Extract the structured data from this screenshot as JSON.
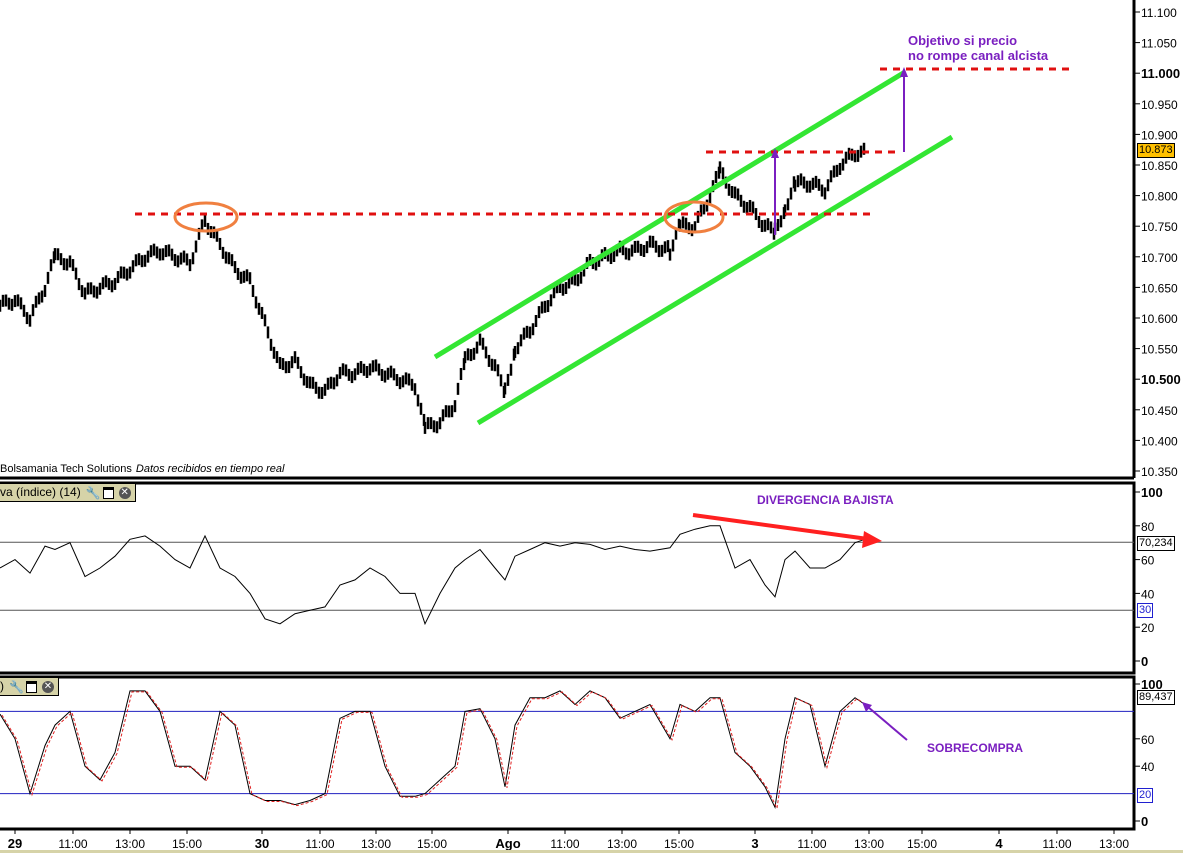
{
  "chart_data": [
    {
      "type": "line",
      "name": "price",
      "title": "Price",
      "y_ticks": [
        "11.100",
        "11.050",
        "11.000",
        "10.950",
        "10.900",
        "10.850",
        "10.800",
        "10.750",
        "10.700",
        "10.650",
        "10.600",
        "10.550",
        "10.500",
        "10.450",
        "10.400",
        "10.350"
      ],
      "ylim": [
        10.35,
        11.1
      ],
      "last_value_label": "10.873",
      "x": [
        0,
        3,
        6,
        9,
        11,
        14,
        17,
        20,
        23,
        26,
        29,
        32,
        35,
        38,
        41,
        44,
        47,
        50,
        53,
        56,
        59,
        62,
        65,
        68,
        71,
        74,
        77,
        80,
        83,
        85,
        88,
        91,
        93,
        96,
        99,
        101,
        103,
        106,
        109,
        112,
        115,
        118,
        121,
        124,
        127,
        130,
        134,
        136,
        139,
        142,
        144,
        147,
        150,
        153,
        155,
        157,
        159,
        162,
        165,
        168,
        171,
        173
      ],
      "values": [
        10.62,
        10.63,
        10.6,
        10.65,
        10.7,
        10.69,
        10.64,
        10.65,
        10.66,
        10.68,
        10.7,
        10.71,
        10.7,
        10.69,
        10.76,
        10.72,
        10.68,
        10.66,
        10.59,
        10.52,
        10.53,
        10.49,
        10.48,
        10.51,
        10.51,
        10.52,
        10.51,
        10.5,
        10.49,
        10.42,
        10.43,
        10.46,
        10.53,
        10.56,
        10.52,
        10.48,
        10.55,
        10.58,
        10.62,
        10.65,
        10.66,
        10.69,
        10.7,
        10.71,
        10.71,
        10.72,
        10.71,
        10.75,
        10.75,
        10.8,
        10.84,
        10.8,
        10.78,
        10.75,
        10.74,
        10.78,
        10.82,
        10.82,
        10.81,
        10.85,
        10.87,
        10.87
      ]
    },
    {
      "type": "line",
      "name": "rsi",
      "header": "va (índice) (14)",
      "y_ticks": [
        "100",
        "80",
        "60",
        "40",
        "20",
        "0"
      ],
      "ylim": [
        0,
        100
      ],
      "levels": [
        70.234,
        30
      ],
      "value_label": "70,234",
      "level_label": "30",
      "values": [
        55,
        60,
        52,
        68,
        66,
        70,
        50,
        55,
        62,
        72,
        74,
        68,
        60,
        55,
        74,
        55,
        50,
        40,
        25,
        22,
        28,
        30,
        32,
        45,
        48,
        55,
        50,
        40,
        40,
        22,
        40,
        55,
        60,
        66,
        55,
        48,
        62,
        66,
        70,
        68,
        70,
        69,
        66,
        68,
        66,
        65,
        67,
        75,
        78,
        80,
        80,
        55,
        60,
        45,
        38,
        60,
        65,
        55,
        55,
        60,
        70,
        72
      ]
    },
    {
      "type": "line",
      "name": "stochastic",
      "header": ")",
      "y_ticks": [
        "100",
        "60",
        "40",
        "0"
      ],
      "ylim": [
        0,
        100
      ],
      "levels": [
        80,
        20
      ],
      "value_label": "89,437",
      "level_labels": [
        "80",
        "20"
      ],
      "values": [
        78,
        60,
        20,
        55,
        70,
        80,
        40,
        30,
        50,
        95,
        95,
        80,
        40,
        40,
        30,
        80,
        70,
        20,
        15,
        15,
        12,
        15,
        20,
        75,
        80,
        80,
        40,
        18,
        18,
        20,
        30,
        40,
        80,
        82,
        60,
        25,
        70,
        90,
        90,
        95,
        85,
        95,
        90,
        75,
        80,
        85,
        60,
        85,
        80,
        90,
        90,
        50,
        40,
        25,
        10,
        60,
        90,
        85,
        40,
        80,
        90,
        85
      ]
    }
  ],
  "x_axis": [
    "29",
    "11:00",
    "13:00",
    "15:00",
    "30",
    "11:00",
    "13:00",
    "15:00",
    "Ago",
    "11:00",
    "13:00",
    "15:00",
    "3",
    "11:00",
    "13:00",
    "15:00",
    "4",
    "11:00",
    "13:00"
  ],
  "footer": {
    "brand": "Bolsamania Tech Solutions",
    "note": "Datos recibidos en tiempo real"
  },
  "annotations": {
    "target_line1": "Objetivo si precio",
    "target_line2": "no rompe canal alcista",
    "divergence": "DIVERGENCIA BAJISTA",
    "overbought": "SOBRECOMPRA"
  },
  "colors": {
    "channel": "#33e633",
    "level": "#e01010",
    "ellipse": "#f08040",
    "annotation": "#7a1fc0",
    "last": "#ffc000"
  }
}
